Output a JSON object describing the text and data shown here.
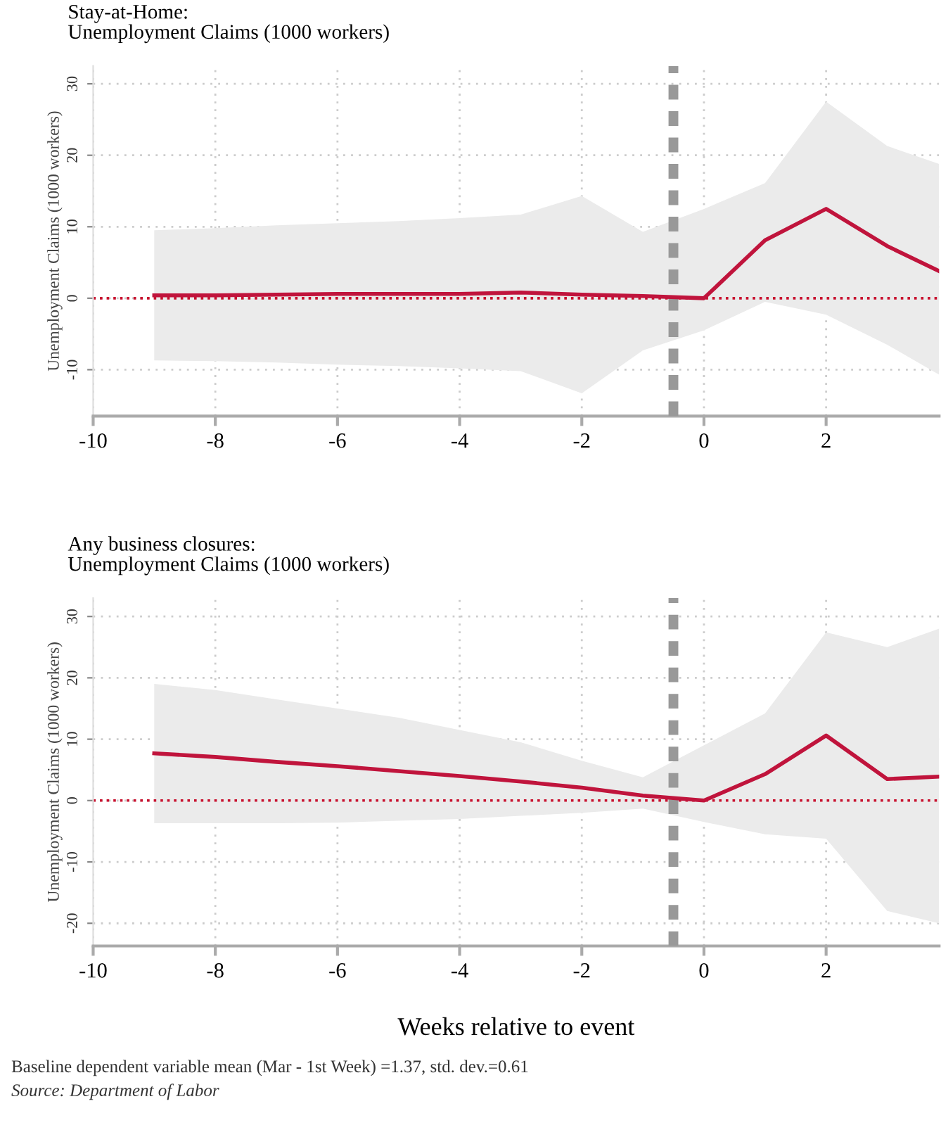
{
  "chart_data": [
    {
      "type": "line",
      "title": "Stay-at-Home:\nUnemployment Claims (1000 workers)",
      "ylabel": "Unemployment Claims (1000 workers)",
      "x": [
        -9,
        -8,
        -7,
        -6,
        -5,
        -4,
        -3,
        -2,
        -1,
        0,
        1,
        2,
        3,
        3.85
      ],
      "series": [
        {
          "color": "#c0143c",
          "values": [
            0.4,
            0.4,
            0.5,
            0.6,
            0.6,
            0.6,
            0.8,
            0.5,
            0.3,
            0,
            8.1,
            12.5,
            7.3,
            3.8
          ],
          "upper": [
            9.5,
            9.8,
            10.2,
            10.5,
            10.8,
            11.2,
            11.7,
            14.3,
            9.3,
            12.5,
            16.1,
            27.5,
            21.3,
            18.8
          ],
          "lower": [
            -8.7,
            -8.8,
            -9,
            -9.3,
            -9.5,
            -9.8,
            -10.2,
            -13.3,
            -7.3,
            -4.5,
            -0.5,
            -2.3,
            -6.5,
            -10.7
          ]
        }
      ],
      "xlim": [
        -10,
        3.85
      ],
      "ylim": [
        -16.5,
        32.5
      ],
      "xticks": [
        -10,
        -8,
        -6,
        -4,
        -2,
        0,
        2
      ],
      "yticks": [
        -10,
        0,
        10,
        20,
        30
      ],
      "ref_lines": [
        {
          "axis": "y",
          "value": 0,
          "color": "#c8102e",
          "line_style": "dotted"
        },
        {
          "axis": "x",
          "value": -0.5,
          "color": "#999999",
          "line_style": "dashed"
        }
      ],
      "grid": true,
      "line_style": "solid",
      "marker": "none"
    },
    {
      "type": "line",
      "title": "Any business closures:\nUnemployment Claims (1000 workers)",
      "ylabel": "Unemployment Claims (1000 workers)",
      "xlabel": "Weeks relative to event",
      "x": [
        -9,
        -8,
        -7,
        -6,
        -5,
        -4,
        -3,
        -2,
        -1,
        0,
        1,
        2,
        3,
        3.85
      ],
      "series": [
        {
          "color": "#c0143c",
          "values": [
            7.7,
            7.1,
            6.3,
            5.6,
            4.8,
            4.0,
            3.1,
            2.1,
            0.8,
            0,
            4.3,
            10.6,
            3.5,
            3.9
          ],
          "upper": [
            19,
            18,
            16.5,
            15,
            13.5,
            11.5,
            9.5,
            6.5,
            3.8,
            9,
            14.2,
            27.4,
            25,
            28
          ],
          "lower": [
            -3.7,
            -3.7,
            -3.7,
            -3.6,
            -3.3,
            -3,
            -2.5,
            -2,
            -1.3,
            -3.5,
            -5.5,
            -6.2,
            -18,
            -20
          ]
        }
      ],
      "xlim": [
        -10,
        3.85
      ],
      "ylim": [
        -23.7,
        33
      ],
      "xticks": [
        -10,
        -8,
        -6,
        -4,
        -2,
        0,
        2
      ],
      "yticks": [
        -20,
        -10,
        0,
        10,
        20,
        30
      ],
      "ref_lines": [
        {
          "axis": "y",
          "value": 0,
          "color": "#c8102e",
          "line_style": "dotted"
        },
        {
          "axis": "x",
          "value": -0.5,
          "color": "#999999",
          "line_style": "dashed"
        }
      ],
      "grid": true,
      "line_style": "solid",
      "marker": "none",
      "annotations": [
        "Baseline dependent variable mean (Mar - 1st Week) =1.37, std. dev.=0.61",
        "Source: Department of Labor"
      ]
    }
  ]
}
